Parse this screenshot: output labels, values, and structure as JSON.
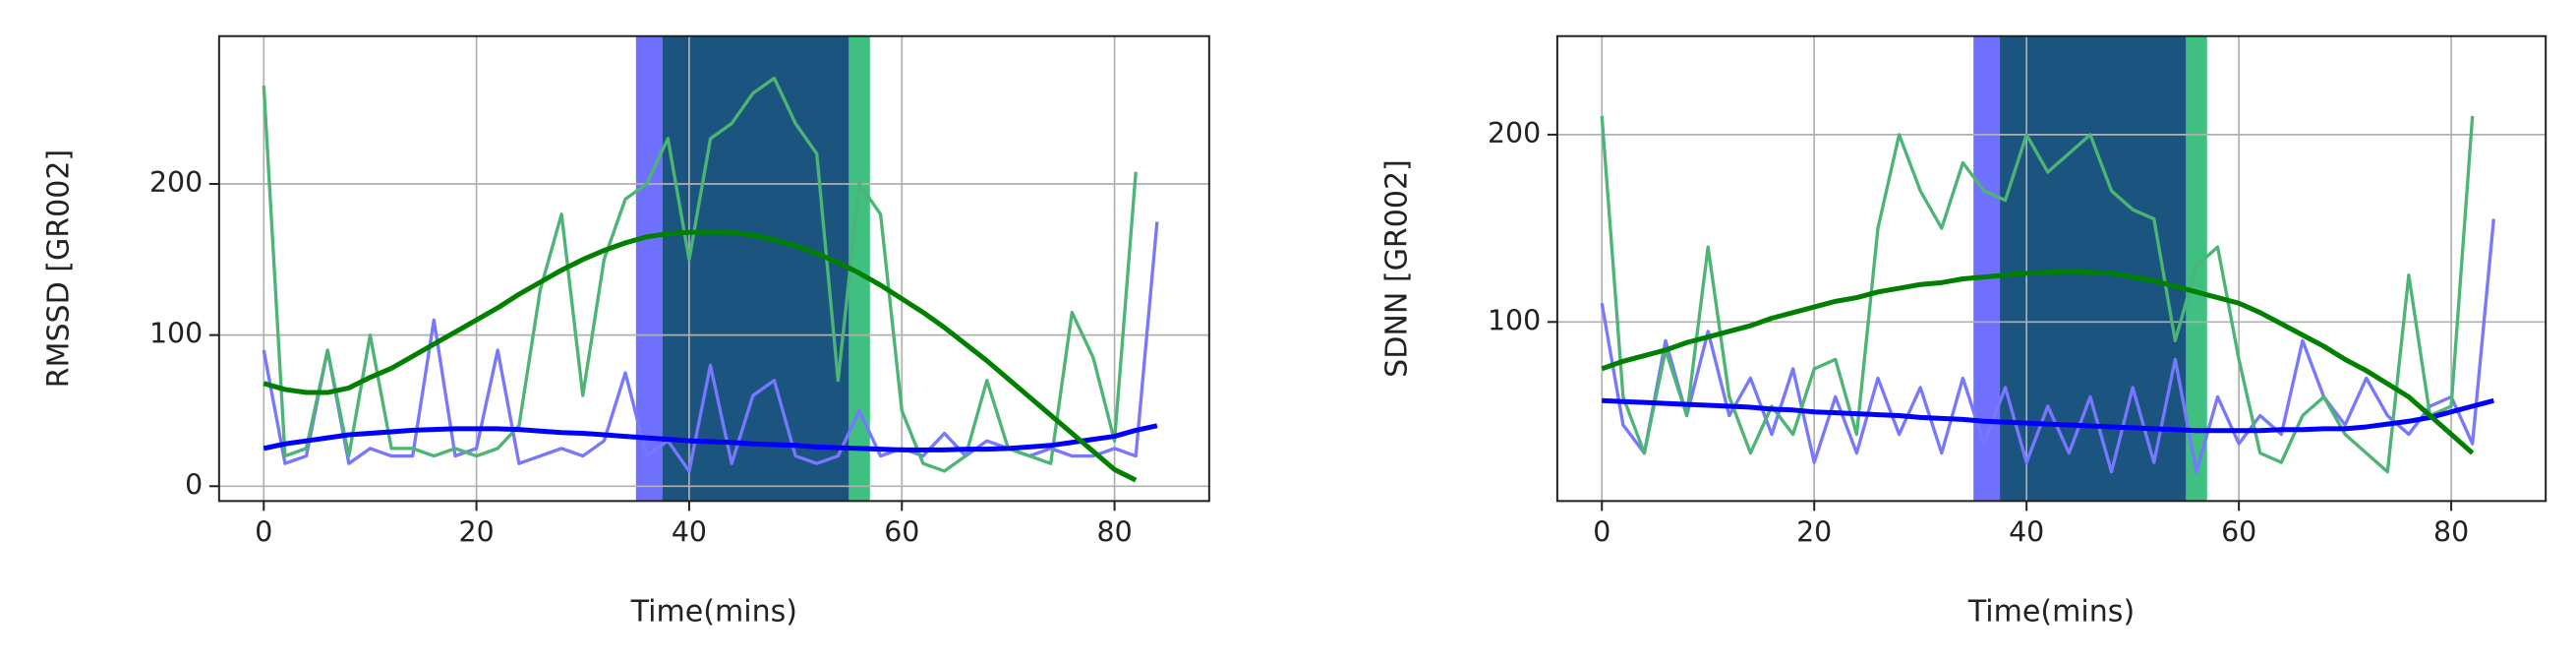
{
  "chart_data": [
    {
      "type": "line",
      "ylabel": "RMSSD [GR002]",
      "xlabel": "Time(mins)",
      "xlim": [
        -4.2,
        88.9
      ],
      "ylim": [
        -9.8,
        297.8
      ],
      "xticks": [
        0,
        20,
        40,
        60,
        80
      ],
      "yticks": [
        0,
        100,
        200
      ],
      "grid": true,
      "spans": [
        {
          "start": 35,
          "end": 55,
          "color": "#7070ff"
        },
        {
          "start": 37.5,
          "end": 57,
          "color": "#40c080"
        }
      ],
      "x": [
        0,
        2,
        4,
        6,
        8,
        10,
        12,
        14,
        16,
        18,
        20,
        22,
        24,
        26,
        28,
        30,
        32,
        34,
        36,
        38,
        40,
        42,
        44,
        46,
        48,
        50,
        52,
        54,
        56,
        58,
        60,
        62,
        64,
        66,
        68,
        70,
        72,
        74,
        76,
        78,
        80,
        82,
        84
      ],
      "series": [
        {
          "color": "#7777ff",
          "line_width": 2,
          "values": [
            90,
            15,
            20,
            90,
            15,
            25,
            20,
            20,
            110,
            20,
            25,
            90,
            15,
            20,
            25,
            20,
            30,
            75,
            20,
            30,
            10,
            80,
            15,
            60,
            70,
            20,
            15,
            20,
            50,
            20,
            25,
            20,
            35,
            20,
            30,
            25,
            20,
            25,
            20,
            20,
            25,
            20,
            175
          ]
        },
        {
          "color": "#4cb474",
          "line_width": 2,
          "values": [
            265,
            20,
            25,
            90,
            20,
            100,
            25,
            25,
            20,
            25,
            20,
            25,
            40,
            130,
            180,
            60,
            150,
            190,
            200,
            230,
            150,
            230,
            240,
            260,
            270,
            240,
            220,
            70,
            200,
            180,
            50,
            15,
            10,
            20,
            70,
            25,
            20,
            15,
            115,
            85,
            30,
            208,
            null
          ]
        },
        {
          "color": "#0000ff",
          "line_width": 3,
          "values": [
            25,
            28,
            30,
            32,
            34,
            35,
            36,
            37,
            37.5,
            38,
            38,
            38,
            37.5,
            36.5,
            35.5,
            35,
            34,
            33,
            32,
            31,
            30,
            29.5,
            29,
            28,
            27.5,
            27,
            26,
            25.5,
            25,
            24.5,
            24,
            24,
            24,
            24.5,
            24.5,
            25,
            26,
            27,
            29,
            31,
            33,
            37,
            40
          ]
        },
        {
          "color": "#008000",
          "line_width": 3,
          "values": [
            68,
            64,
            62,
            62,
            65,
            72,
            78,
            86,
            94,
            102,
            110,
            118,
            127,
            135,
            143,
            150,
            156,
            161,
            165,
            167,
            168,
            168,
            168,
            166,
            163,
            159,
            154,
            148,
            141,
            133,
            124,
            115,
            105,
            94,
            83,
            71,
            59,
            47,
            35,
            23,
            11,
            4,
            null
          ]
        }
      ]
    },
    {
      "type": "line",
      "ylabel": "SDNN [GR002]",
      "xlabel": "Time(mins)",
      "xlim": [
        -4.2,
        88.9
      ],
      "ylim": [
        4.4,
        252.6
      ],
      "xticks": [
        0,
        20,
        40,
        60,
        80
      ],
      "yticks": [
        100,
        200
      ],
      "grid": true,
      "spans": [
        {
          "start": 35,
          "end": 55,
          "color": "#7070ff"
        },
        {
          "start": 37.5,
          "end": 57,
          "color": "#40c080"
        }
      ],
      "x": [
        0,
        2,
        4,
        6,
        8,
        10,
        12,
        14,
        16,
        18,
        20,
        22,
        24,
        26,
        28,
        30,
        32,
        34,
        36,
        38,
        40,
        42,
        44,
        46,
        48,
        50,
        52,
        54,
        56,
        58,
        60,
        62,
        64,
        66,
        68,
        70,
        72,
        74,
        76,
        78,
        80,
        82,
        84
      ],
      "series": [
        {
          "color": "#7777ff",
          "line_width": 2,
          "values": [
            110,
            45,
            30,
            90,
            50,
            95,
            50,
            70,
            40,
            75,
            25,
            60,
            30,
            70,
            40,
            65,
            30,
            70,
            35,
            65,
            25,
            55,
            30,
            60,
            20,
            65,
            25,
            80,
            20,
            60,
            35,
            50,
            40,
            90,
            60,
            45,
            70,
            50,
            40,
            55,
            60,
            35,
            155
          ]
        },
        {
          "color": "#4cb474",
          "line_width": 2,
          "values": [
            210,
            60,
            30,
            85,
            50,
            140,
            60,
            30,
            55,
            40,
            75,
            80,
            40,
            150,
            200,
            170,
            150,
            185,
            170,
            165,
            200,
            180,
            190,
            200,
            170,
            160,
            155,
            90,
            130,
            140,
            80,
            30,
            25,
            50,
            60,
            40,
            30,
            20,
            125,
            50,
            55,
            210,
            null
          ]
        },
        {
          "color": "#0000ff",
          "line_width": 3,
          "values": [
            58,
            57.5,
            57,
            56.5,
            56,
            55.5,
            55,
            54.5,
            53.5,
            53,
            52,
            51.5,
            51,
            50.5,
            50,
            49,
            48.5,
            48,
            47,
            46.5,
            46,
            45.5,
            45,
            44.5,
            44,
            43.5,
            43,
            42.5,
            42,
            42,
            42,
            42,
            42.5,
            42.5,
            43,
            43,
            44,
            45.5,
            47,
            49,
            52,
            55,
            58
          ]
        },
        {
          "color": "#008000",
          "line_width": 3,
          "values": [
            75,
            79,
            82,
            85,
            89,
            92,
            95,
            98,
            102,
            105,
            108,
            111,
            113,
            116,
            118,
            120,
            121,
            123,
            124,
            125,
            126,
            126.5,
            127,
            126.5,
            126,
            124,
            122,
            119,
            116,
            113,
            110,
            105,
            99,
            93,
            87,
            80,
            74,
            67,
            60,
            50,
            40,
            30,
            null
          ]
        }
      ]
    }
  ]
}
